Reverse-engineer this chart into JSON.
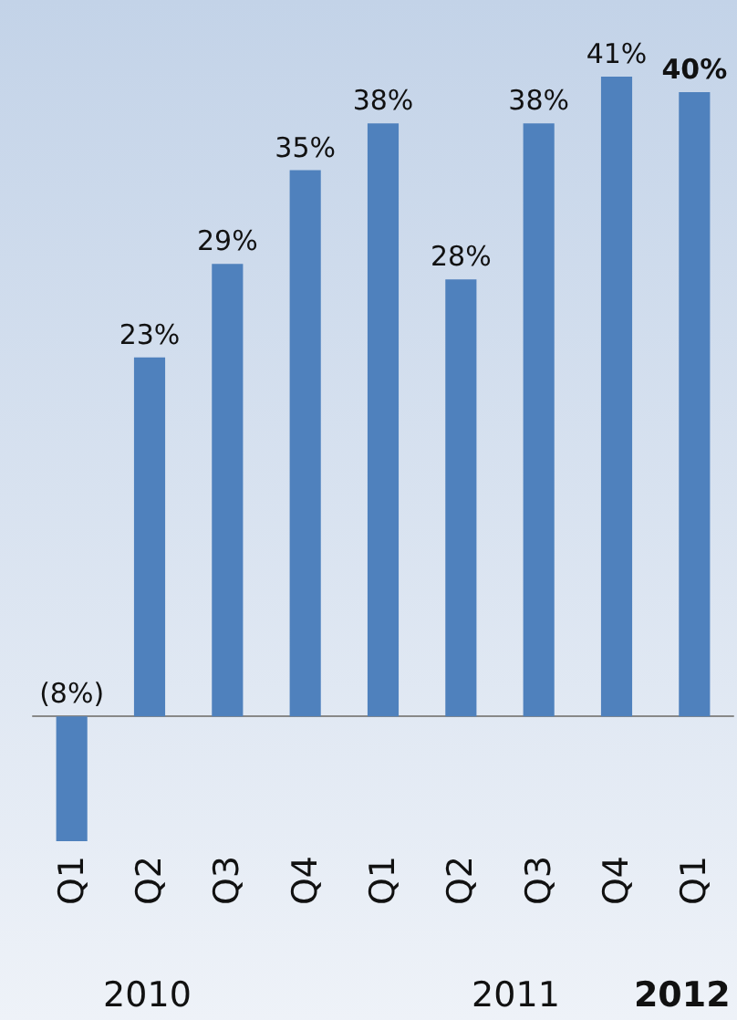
{
  "chart_data": {
    "type": "bar",
    "categories": [
      "Q1",
      "Q2",
      "Q3",
      "Q4",
      "Q1",
      "Q2",
      "Q3",
      "Q4",
      "Q1"
    ],
    "values": [
      -8,
      23,
      29,
      35,
      38,
      28,
      38,
      41,
      40
    ],
    "value_labels": [
      "(8%)",
      "23%",
      "29%",
      "35%",
      "38%",
      "28%",
      "38%",
      "41%",
      "40%"
    ],
    "color": "#4f81bd",
    "annotations": [
      "2010",
      "2011",
      "2012"
    ]
  }
}
